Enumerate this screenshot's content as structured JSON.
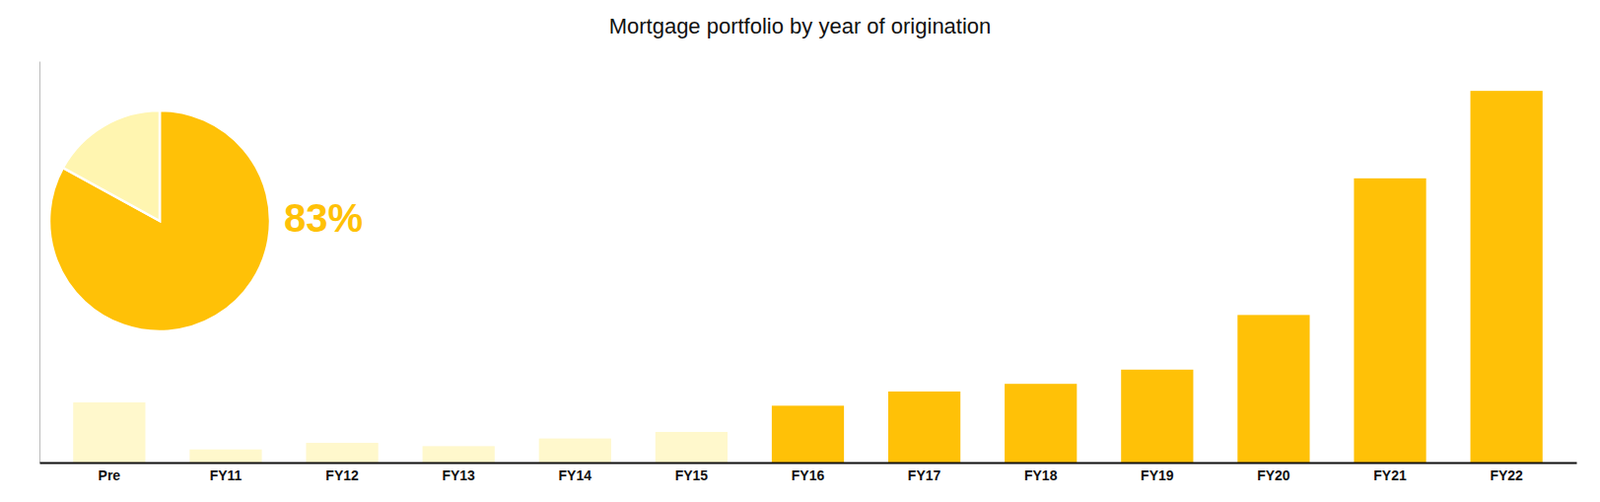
{
  "chart_data": [
    {
      "type": "bar",
      "title": "Mortgage portfolio by year of origination",
      "categories": [
        "Pre",
        "FY11",
        "FY12",
        "FY13",
        "FY14",
        "FY15",
        "FY16",
        "FY17",
        "FY18",
        "FY19",
        "FY20",
        "FY21",
        "FY22"
      ],
      "values": [
        5.5,
        1.2,
        1.8,
        1.5,
        2.2,
        2.8,
        5.2,
        6.5,
        7.2,
        8.5,
        13.5,
        26.0,
        34.0
      ],
      "colors": [
        "#FFF8CC",
        "#FFF8CC",
        "#FFF8CC",
        "#FFF8CC",
        "#FFF8CC",
        "#FFF8CC",
        "#FFC107",
        "#FFC107",
        "#FFC107",
        "#FFC107",
        "#FFC107",
        "#FFC107",
        "#FFC107"
      ],
      "ylim": [
        0,
        36.72
      ],
      "tick_labels": "x",
      "grid": false
    },
    {
      "type": "pie",
      "values": [
        83,
        17
      ],
      "colors": [
        "#FFC107",
        "#FFF5B0"
      ],
      "annotation": "83%"
    }
  ]
}
